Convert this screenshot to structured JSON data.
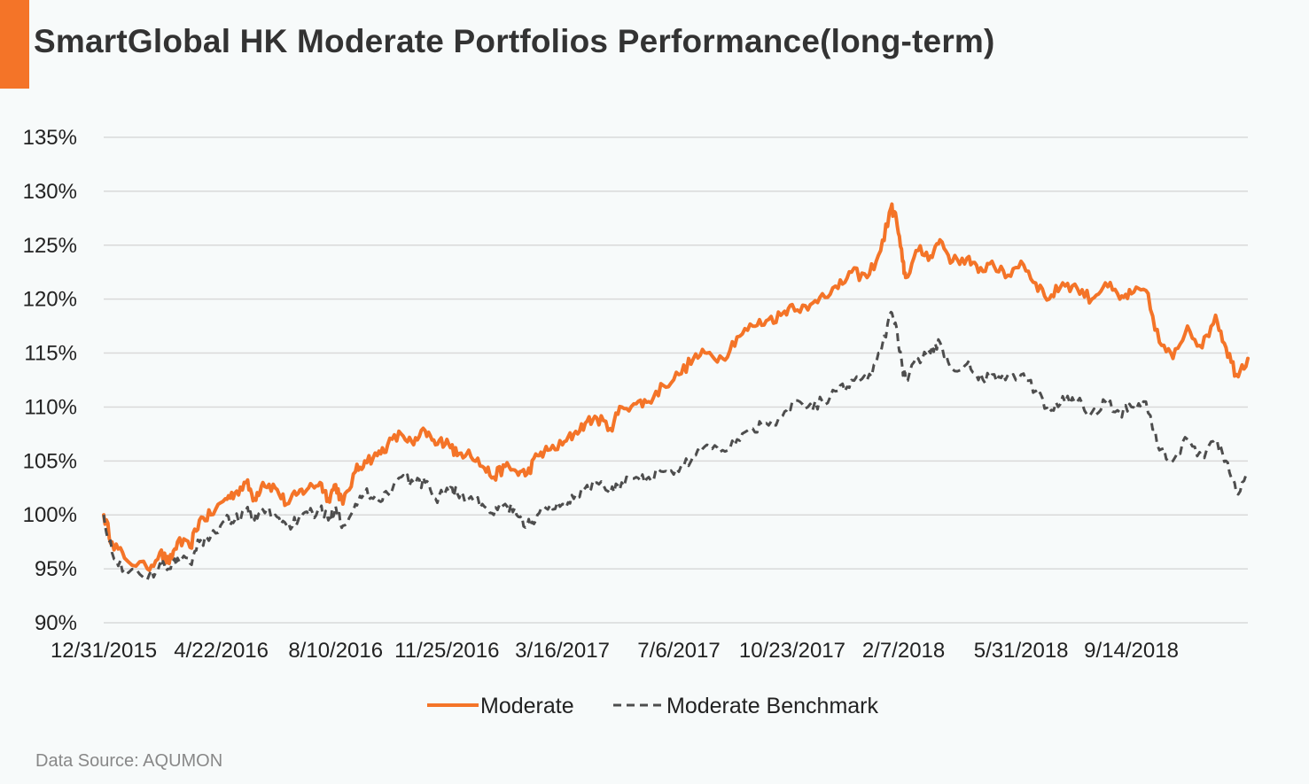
{
  "header": {
    "title": "SmartGlobal HK Moderate Portfolios Performance(long-term)"
  },
  "footer": {
    "source": "Data Source: AQUMON"
  },
  "colors": {
    "accent": "#f47428",
    "moderate": "#f47428",
    "benchmark": "#4d4d4d",
    "grid": "#d9d9d9"
  },
  "chart_data": {
    "type": "line",
    "title": "SmartGlobal HK Moderate Portfolios Performance(long-term)",
    "x_tick_labels": [
      "12/31/2015",
      "4/22/2016",
      "8/10/2016",
      "11/25/2016",
      "3/16/2017",
      "7/6/2017",
      "10/23/2017",
      "2/7/2018",
      "5/31/2018",
      "9/14/2018"
    ],
    "y_tick_labels": [
      "90%",
      "95%",
      "100%",
      "105%",
      "110%",
      "115%",
      "120%",
      "125%",
      "130%",
      "135%"
    ],
    "ylim": [
      90,
      135
    ],
    "xlim": [
      "2015-12-31",
      "2019-01-04"
    ],
    "grid": "horizontal",
    "legend_position": "bottom-center",
    "series": [
      {
        "name": "Moderate",
        "style": "solid",
        "points": [
          [
            "2015-12-31",
            100
          ],
          [
            "2016-01-08",
            97.5
          ],
          [
            "2016-01-20",
            96.0
          ],
          [
            "2016-02-11",
            95.0
          ],
          [
            "2016-02-23",
            96.5
          ],
          [
            "2016-03-03",
            95.5
          ],
          [
            "2016-03-11",
            97.5
          ],
          [
            "2016-03-23",
            97.0
          ],
          [
            "2016-04-01",
            99.5
          ],
          [
            "2016-04-12",
            100.0
          ],
          [
            "2016-04-26",
            101.5
          ],
          [
            "2016-05-05",
            102.0
          ],
          [
            "2016-05-16",
            103.0
          ],
          [
            "2016-05-24",
            101.5
          ],
          [
            "2016-06-01",
            103.0
          ],
          [
            "2016-06-13",
            102.5
          ],
          [
            "2016-06-24",
            101.0
          ],
          [
            "2016-07-05",
            102.0
          ],
          [
            "2016-07-15",
            102.5
          ],
          [
            "2016-07-26",
            103.0
          ],
          [
            "2016-08-03",
            101.5
          ],
          [
            "2016-08-10",
            102.8
          ],
          [
            "2016-08-17",
            101.0
          ],
          [
            "2016-08-29",
            104.0
          ],
          [
            "2016-09-07",
            105.0
          ],
          [
            "2016-09-19",
            105.5
          ],
          [
            "2016-09-29",
            106.5
          ],
          [
            "2016-10-12",
            107.5
          ],
          [
            "2016-10-24",
            106.5
          ],
          [
            "2016-11-04",
            107.8
          ],
          [
            "2016-11-14",
            106.5
          ],
          [
            "2016-11-25",
            107.0
          ],
          [
            "2016-12-05",
            105.5
          ],
          [
            "2016-12-16",
            106.0
          ],
          [
            "2016-12-29",
            104.5
          ],
          [
            "2017-01-09",
            103.5
          ],
          [
            "2017-01-20",
            104.5
          ],
          [
            "2017-01-31",
            104.0
          ],
          [
            "2017-02-10",
            103.8
          ],
          [
            "2017-02-20",
            105.5
          ],
          [
            "2017-03-02",
            106.0
          ],
          [
            "2017-03-16",
            106.5
          ],
          [
            "2017-03-27",
            107.5
          ],
          [
            "2017-04-07",
            108.5
          ],
          [
            "2017-04-18",
            109.0
          ],
          [
            "2017-05-01",
            108.0
          ],
          [
            "2017-05-12",
            110.0
          ],
          [
            "2017-05-26",
            110.3
          ],
          [
            "2017-06-07",
            110.5
          ],
          [
            "2017-06-21",
            112.0
          ],
          [
            "2017-07-06",
            113.0
          ],
          [
            "2017-07-20",
            114.5
          ],
          [
            "2017-08-02",
            115.0
          ],
          [
            "2017-08-17",
            114.5
          ],
          [
            "2017-08-31",
            116.5
          ],
          [
            "2017-09-15",
            117.5
          ],
          [
            "2017-09-28",
            118.0
          ],
          [
            "2017-10-12",
            118.5
          ],
          [
            "2017-10-23",
            119.5
          ],
          [
            "2017-11-07",
            119.0
          ],
          [
            "2017-11-21",
            120.5
          ],
          [
            "2017-12-06",
            121.0
          ],
          [
            "2017-12-19",
            122.5
          ],
          [
            "2018-01-03",
            122.0
          ],
          [
            "2018-01-16",
            124.5
          ],
          [
            "2018-01-26",
            128.5
          ],
          [
            "2018-01-31",
            127.5
          ],
          [
            "2018-02-06",
            123.5
          ],
          [
            "2018-02-09",
            122.0
          ],
          [
            "2018-02-21",
            124.5
          ],
          [
            "2018-03-05",
            124.0
          ],
          [
            "2018-03-14",
            125.5
          ],
          [
            "2018-03-26",
            123.5
          ],
          [
            "2018-04-09",
            123.8
          ],
          [
            "2018-04-20",
            122.5
          ],
          [
            "2018-05-03",
            123.5
          ],
          [
            "2018-05-16",
            122.0
          ],
          [
            "2018-05-31",
            123.5
          ],
          [
            "2018-06-14",
            121.5
          ],
          [
            "2018-06-27",
            120.0
          ],
          [
            "2018-07-10",
            121.5
          ],
          [
            "2018-07-24",
            121.0
          ],
          [
            "2018-08-07",
            120.0
          ],
          [
            "2018-08-20",
            121.5
          ],
          [
            "2018-09-03",
            120.0
          ],
          [
            "2018-09-14",
            120.5
          ],
          [
            "2018-09-28",
            120.8
          ],
          [
            "2018-10-11",
            116.0
          ],
          [
            "2018-10-24",
            114.5
          ],
          [
            "2018-11-07",
            117.5
          ],
          [
            "2018-11-21",
            115.5
          ],
          [
            "2018-12-04",
            118.5
          ],
          [
            "2018-12-14",
            115.5
          ],
          [
            "2018-12-24",
            113.0
          ],
          [
            "2019-01-04",
            114.5
          ]
        ]
      },
      {
        "name": "Moderate Benchmark",
        "style": "dashed",
        "points": [
          [
            "2015-12-31",
            100
          ],
          [
            "2016-01-08",
            96.5
          ],
          [
            "2016-01-20",
            95.0
          ],
          [
            "2016-02-11",
            94.0
          ],
          [
            "2016-02-23",
            95.5
          ],
          [
            "2016-03-03",
            95.0
          ],
          [
            "2016-03-11",
            96.0
          ],
          [
            "2016-03-23",
            95.5
          ],
          [
            "2016-04-01",
            97.5
          ],
          [
            "2016-04-12",
            98.0
          ],
          [
            "2016-04-26",
            99.5
          ],
          [
            "2016-05-05",
            99.5
          ],
          [
            "2016-05-16",
            100.5
          ],
          [
            "2016-05-24",
            99.5
          ],
          [
            "2016-06-01",
            100.5
          ],
          [
            "2016-06-13",
            100.0
          ],
          [
            "2016-06-24",
            99.0
          ],
          [
            "2016-07-05",
            99.5
          ],
          [
            "2016-07-15",
            100.0
          ],
          [
            "2016-07-26",
            100.5
          ],
          [
            "2016-08-03",
            99.5
          ],
          [
            "2016-08-10",
            100.8
          ],
          [
            "2016-08-17",
            99.0
          ],
          [
            "2016-08-29",
            101.0
          ],
          [
            "2016-09-07",
            102.0
          ],
          [
            "2016-09-19",
            101.5
          ],
          [
            "2016-09-29",
            102.0
          ],
          [
            "2016-10-12",
            103.5
          ],
          [
            "2016-10-24",
            103.0
          ],
          [
            "2016-11-04",
            103.0
          ],
          [
            "2016-11-14",
            101.5
          ],
          [
            "2016-11-25",
            102.5
          ],
          [
            "2016-12-05",
            102.0
          ],
          [
            "2016-12-16",
            101.5
          ],
          [
            "2016-12-29",
            101.0
          ],
          [
            "2017-01-09",
            100.0
          ],
          [
            "2017-01-20",
            101.0
          ],
          [
            "2017-01-31",
            100.0
          ],
          [
            "2017-02-10",
            99.0
          ],
          [
            "2017-02-20",
            100.0
          ],
          [
            "2017-03-02",
            100.5
          ],
          [
            "2017-03-16",
            101.0
          ],
          [
            "2017-03-27",
            101.5
          ],
          [
            "2017-04-07",
            102.5
          ],
          [
            "2017-04-18",
            103.0
          ],
          [
            "2017-05-01",
            102.0
          ],
          [
            "2017-05-12",
            103.0
          ],
          [
            "2017-05-26",
            103.5
          ],
          [
            "2017-06-07",
            103.5
          ],
          [
            "2017-06-21",
            104.0
          ],
          [
            "2017-07-06",
            104.0
          ],
          [
            "2017-07-20",
            105.5
          ],
          [
            "2017-08-02",
            106.5
          ],
          [
            "2017-08-17",
            106.0
          ],
          [
            "2017-08-31",
            107.0
          ],
          [
            "2017-09-15",
            108.0
          ],
          [
            "2017-09-28",
            108.5
          ],
          [
            "2017-10-12",
            109.0
          ],
          [
            "2017-10-23",
            110.5
          ],
          [
            "2017-11-07",
            110.0
          ],
          [
            "2017-11-21",
            110.5
          ],
          [
            "2017-12-06",
            111.5
          ],
          [
            "2017-12-19",
            112.5
          ],
          [
            "2018-01-03",
            112.5
          ],
          [
            "2018-01-16",
            115.0
          ],
          [
            "2018-01-26",
            118.8
          ],
          [
            "2018-01-31",
            117.5
          ],
          [
            "2018-02-06",
            113.5
          ],
          [
            "2018-02-09",
            112.5
          ],
          [
            "2018-02-21",
            114.5
          ],
          [
            "2018-03-05",
            115.0
          ],
          [
            "2018-03-14",
            116.0
          ],
          [
            "2018-03-26",
            113.5
          ],
          [
            "2018-04-09",
            114.0
          ],
          [
            "2018-04-20",
            112.5
          ],
          [
            "2018-05-03",
            113.0
          ],
          [
            "2018-05-16",
            112.5
          ],
          [
            "2018-05-31",
            113.0
          ],
          [
            "2018-06-14",
            111.5
          ],
          [
            "2018-06-27",
            109.5
          ],
          [
            "2018-07-10",
            111.0
          ],
          [
            "2018-07-24",
            110.5
          ],
          [
            "2018-08-07",
            109.5
          ],
          [
            "2018-08-20",
            110.5
          ],
          [
            "2018-09-03",
            109.5
          ],
          [
            "2018-09-14",
            110.0
          ],
          [
            "2018-09-28",
            110.5
          ],
          [
            "2018-10-11",
            106.0
          ],
          [
            "2018-10-24",
            105.0
          ],
          [
            "2018-11-07",
            107.0
          ],
          [
            "2018-11-21",
            105.5
          ],
          [
            "2018-12-04",
            107.0
          ],
          [
            "2018-12-14",
            105.0
          ],
          [
            "2018-12-24",
            102.0
          ],
          [
            "2019-01-04",
            103.5
          ]
        ]
      }
    ]
  }
}
